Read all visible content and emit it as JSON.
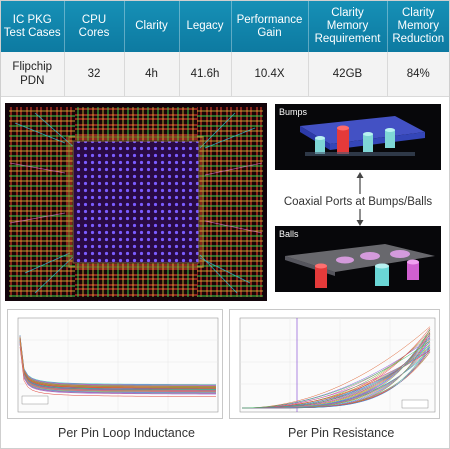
{
  "table": {
    "headers": [
      "IC PKG Test Cases",
      "CPU Cores",
      "Clarity",
      "Legacy",
      "Performance Gain",
      "Clarity Memory Requirement",
      "Clarity Memory Reduction"
    ],
    "rows": [
      [
        "Flipchip PDN",
        "32",
        "4h",
        "41.6h",
        "10.4X",
        "42GB",
        "84%"
      ]
    ]
  },
  "images": {
    "bumps_label": "Bumps",
    "balls_label": "Balls",
    "coax_caption": "Coaxial Ports at Bumps/Balls"
  },
  "plots": {
    "left_caption": "Per Pin Loop Inductance",
    "right_caption": "Per Pin Resistance"
  },
  "colors": {
    "header_bg": "#1188b0",
    "cell_bg": "#f3f3f3",
    "accent": "#0d7aa1"
  }
}
